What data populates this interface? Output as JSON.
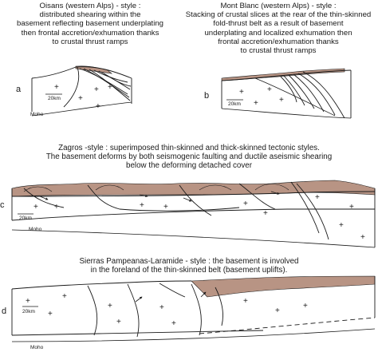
{
  "panels": {
    "a": {
      "letter": "a",
      "caption": [
        "Oisans (western Alps) - style :",
        "distributed shearing within the",
        "basement reflecting basement underplating",
        "then frontal accretion/exhumation thanks",
        "to crustal thrust ramps"
      ],
      "scale": "20km",
      "moho": "Moho"
    },
    "b": {
      "letter": "b",
      "caption": [
        "Mont Blanc (western Alps) - style :",
        "Stacking of crustal slices at the rear of the thin-skinned",
        "fold-thrust belt as a result of basement",
        "underplating and localized exhumation then",
        "frontal accretion/exhumation thanks",
        "to crustal thrust ramps"
      ],
      "scale": "20km"
    },
    "c": {
      "letter": "c",
      "caption": [
        "Zagros -style : superimposed thin-skinned and thick-skinned tectonic styles.",
        "The basement deforms by both seismogenic faulting and ductile aseismic shearing",
        "below the deforming detached cover"
      ],
      "scale": "20km",
      "moho": "Moho"
    },
    "d": {
      "letter": "d",
      "caption": [
        "Sierras Pampeanas-Laramide - style : the basement is involved",
        "in the foreland of the thin-skinned belt (basement uplifts)."
      ],
      "scale": "20km",
      "moho": "Moho"
    }
  },
  "colors": {
    "cover": "#b89484",
    "line": "#1a1a1a"
  },
  "symbols": {
    "basement": "+"
  }
}
